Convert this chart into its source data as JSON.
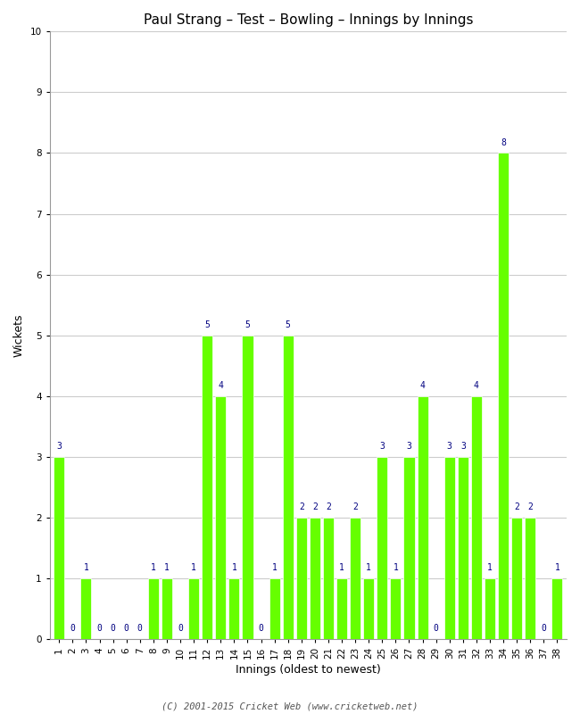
{
  "title": "Paul Strang – Test – Bowling – Innings by Innings",
  "xlabel": "Innings (oldest to newest)",
  "ylabel": "Wickets",
  "bar_color": "#66ff00",
  "bar_edge_color": "#ffffff",
  "label_color": "#000080",
  "background_color": "#ffffff",
  "grid_color": "#cccccc",
  "ylim": [
    0,
    10
  ],
  "yticks": [
    0,
    1,
    2,
    3,
    4,
    5,
    6,
    7,
    8,
    9,
    10
  ],
  "innings": [
    1,
    2,
    3,
    4,
    5,
    6,
    7,
    8,
    9,
    10,
    11,
    12,
    13,
    14,
    15,
    16,
    17,
    18,
    19,
    20,
    21,
    22,
    23,
    24,
    25,
    26,
    27,
    28,
    29,
    30,
    31,
    32,
    33,
    34,
    35,
    36,
    37,
    38
  ],
  "wickets": [
    3,
    0,
    1,
    0,
    0,
    0,
    0,
    1,
    1,
    0,
    1,
    5,
    4,
    1,
    5,
    0,
    1,
    5,
    2,
    2,
    2,
    1,
    2,
    1,
    3,
    1,
    3,
    4,
    0,
    3,
    3,
    4,
    1,
    8,
    2,
    2,
    0,
    1
  ],
  "footer": "(C) 2001-2015 Cricket Web (www.cricketweb.net)",
  "title_fontsize": 11,
  "axis_label_fontsize": 9,
  "tick_fontsize": 7.5,
  "footer_fontsize": 7.5,
  "label_fontsize": 7
}
